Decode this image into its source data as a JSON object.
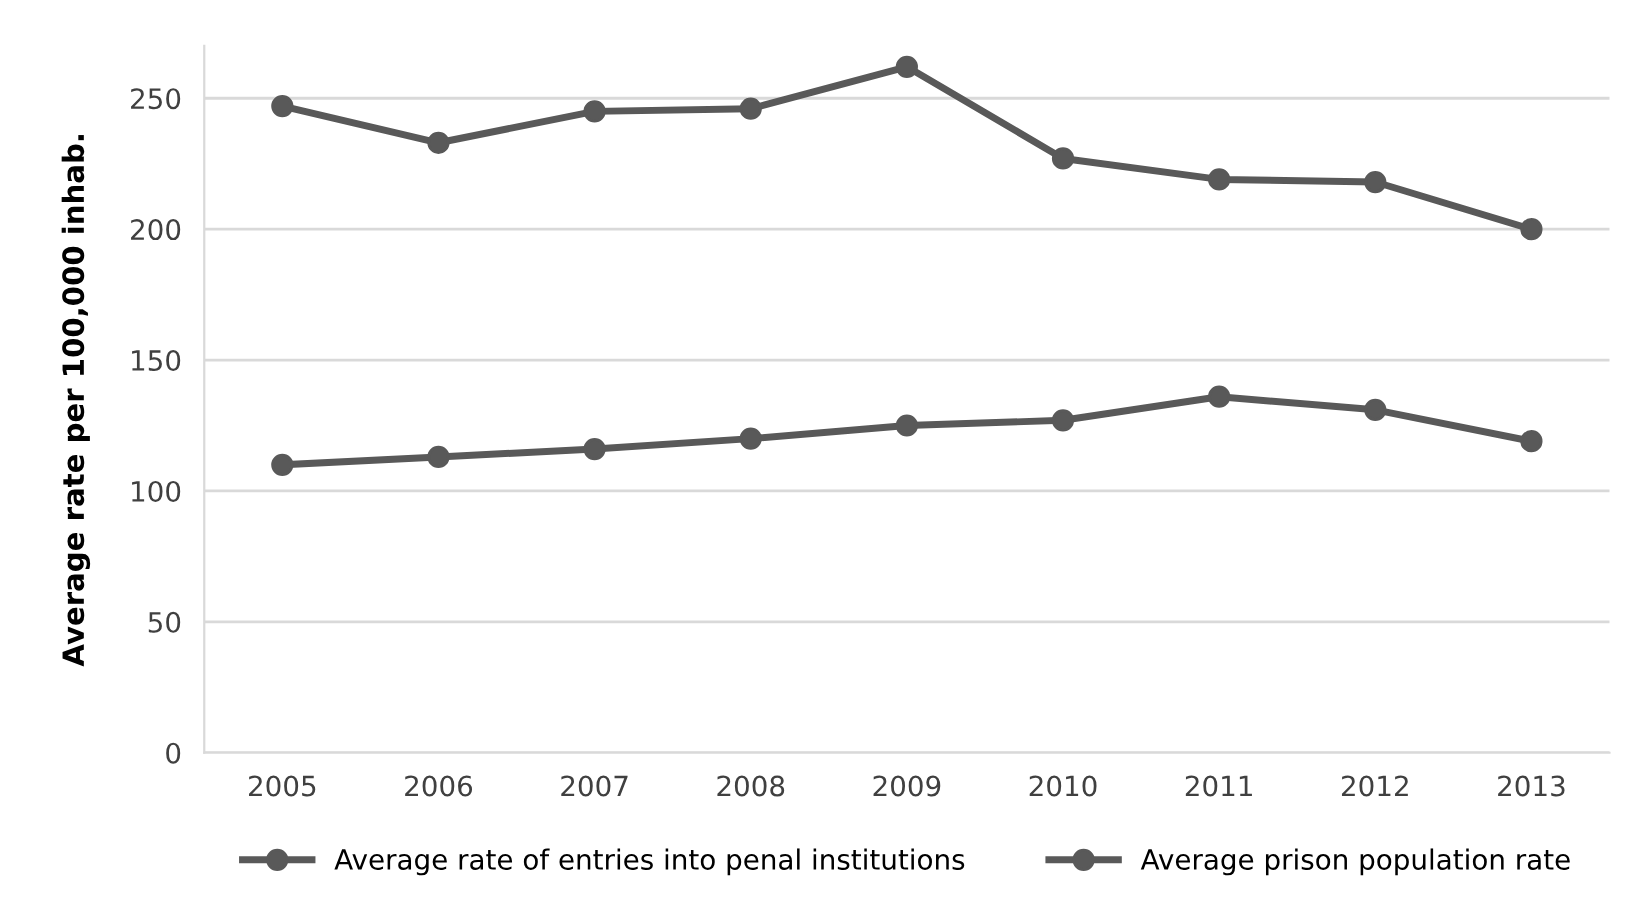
{
  "chart_data": {
    "type": "line",
    "ylabel": "Average rate per 100,000 inhab.",
    "categories": [
      "2005",
      "2006",
      "2007",
      "2008",
      "2009",
      "2010",
      "2011",
      "2012",
      "2013"
    ],
    "series": [
      {
        "name": "Average rate of entries into penal institutions",
        "color": "#595959",
        "values": [
          247,
          233,
          245,
          246,
          262,
          227,
          219,
          218,
          200
        ]
      },
      {
        "name": "Average prison population rate",
        "color": "#595959",
        "values": [
          110,
          113,
          116,
          120,
          125,
          127,
          136,
          131,
          119
        ]
      }
    ],
    "ylim": [
      0,
      270
    ],
    "yticks": [
      0,
      50,
      100,
      150,
      200,
      250
    ],
    "grid": "y",
    "legend": "bottom",
    "marker": "circle",
    "line_style": "solid"
  }
}
